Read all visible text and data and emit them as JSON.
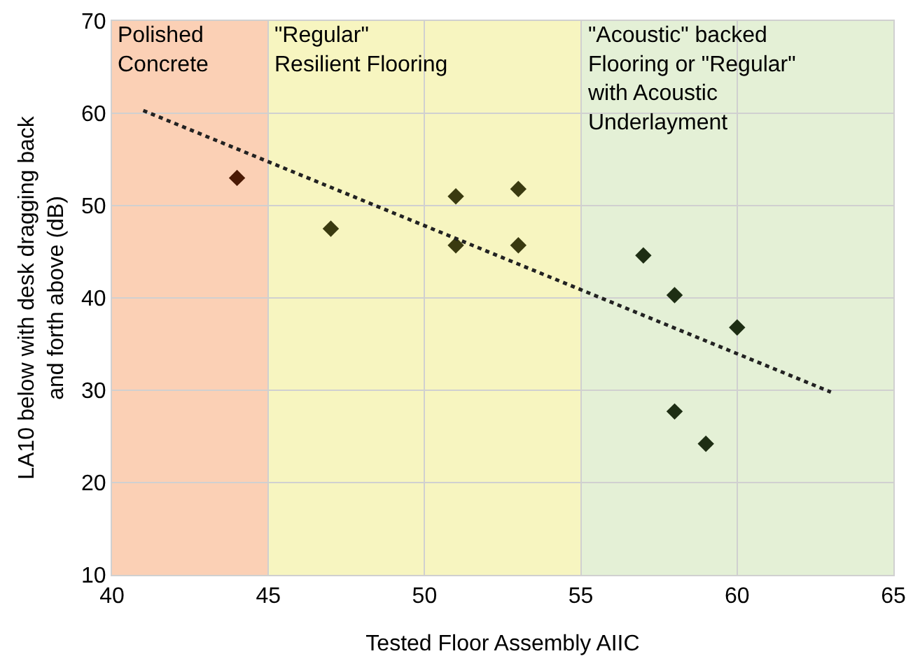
{
  "chart_data": {
    "type": "scatter",
    "xlabel": "Tested Floor Assembly AIIC",
    "ylabel": "LA10 below with desk dragging back\nand forth above (dB)",
    "xlim": [
      40,
      65
    ],
    "xticks": [
      40,
      45,
      50,
      55,
      60,
      65
    ],
    "ylim": [
      10,
      70
    ],
    "yticks": [
      10,
      20,
      30,
      40,
      50,
      60,
      70
    ],
    "grid": true,
    "legend": false,
    "bands": [
      {
        "axis": "x",
        "from": 40,
        "to": 45,
        "label": "Polished\nConcrete",
        "color": "#fbd0b5"
      },
      {
        "axis": "x",
        "from": 45,
        "to": 55,
        "label": "\"Regular\"\nResilient Flooring",
        "color": "#f7f5c0"
      },
      {
        "axis": "x",
        "from": 55,
        "to": 65,
        "label": "\"Acoustic\" backed\nFlooring or \"Regular\"\nwith Acoustic\nUnderlayment",
        "color": "#e4f0d6"
      }
    ],
    "series": [
      {
        "marker": "diamond",
        "x": [
          44,
          47,
          51,
          51,
          53,
          53,
          57,
          58,
          60,
          58,
          59
        ],
        "values": [
          53,
          47.5,
          51,
          45.7,
          51.8,
          45.7,
          44.6,
          40.3,
          36.8,
          27.7,
          24.2
        ],
        "colors": [
          "#4a1a05",
          "#3a3a10",
          "#3a3a10",
          "#3a3a10",
          "#3a3a10",
          "#3a3a10",
          "#1e2e14",
          "#1e2e14",
          "#1e2e14",
          "#1e2e14",
          "#1e2e14"
        ]
      },
      {
        "type": "line",
        "line_style": "dotted",
        "color": "#222222",
        "x": [
          41,
          63
        ],
        "values": [
          60.3,
          29.8
        ]
      }
    ]
  }
}
